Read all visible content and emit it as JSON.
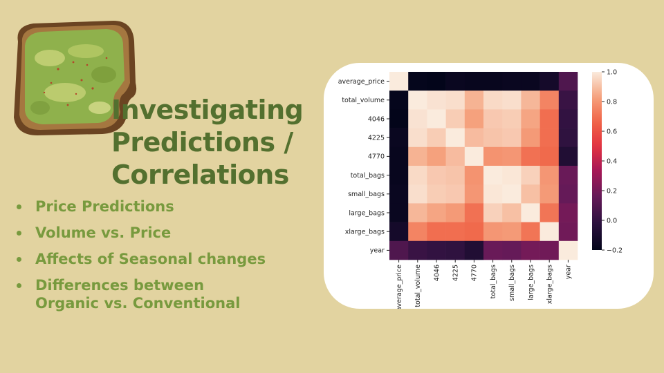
{
  "slide": {
    "title_lines": [
      "Investigating",
      "Predictions /",
      "Correlations"
    ],
    "bullets": [
      "Price Predictions",
      "Volume vs. Price",
      "Affects of Seasonal changes",
      "Differences between Organic vs. Conventional"
    ],
    "colors": {
      "background": "#e2d3a0",
      "title": "#53702f",
      "bullet": "#789a3e",
      "card": "#ffffff"
    },
    "image": "avocado-toast"
  },
  "chart_data": {
    "type": "heatmap",
    "rows": [
      "average_price",
      "total_volume",
      "4046",
      "4225",
      "4770",
      "total_bags",
      "small_bags",
      "large_bags",
      "xlarge_bags",
      "year"
    ],
    "columns": [
      "average_price",
      "total_volume",
      "4046",
      "4225",
      "4770",
      "total_bags",
      "small_bags",
      "large_bags",
      "xlarge_bags",
      "year"
    ],
    "values": [
      [
        1.0,
        -0.19,
        -0.21,
        -0.17,
        -0.18,
        -0.18,
        -0.17,
        -0.17,
        -0.12,
        0.09
      ],
      [
        -0.19,
        1.0,
        0.98,
        0.97,
        0.87,
        0.96,
        0.97,
        0.88,
        0.75,
        0.02
      ],
      [
        -0.21,
        0.98,
        1.0,
        0.93,
        0.83,
        0.92,
        0.93,
        0.84,
        0.69,
        0.0
      ],
      [
        -0.17,
        0.97,
        0.93,
        1.0,
        0.89,
        0.91,
        0.92,
        0.81,
        0.69,
        -0.01
      ],
      [
        -0.18,
        0.87,
        0.83,
        0.89,
        1.0,
        0.79,
        0.8,
        0.7,
        0.68,
        -0.07
      ],
      [
        -0.18,
        0.96,
        0.92,
        0.91,
        0.79,
        1.0,
        0.99,
        0.94,
        0.8,
        0.17
      ],
      [
        -0.17,
        0.97,
        0.93,
        0.92,
        0.8,
        0.99,
        1.0,
        0.9,
        0.81,
        0.16
      ],
      [
        -0.17,
        0.88,
        0.84,
        0.81,
        0.7,
        0.94,
        0.9,
        1.0,
        0.71,
        0.2
      ],
      [
        -0.12,
        0.75,
        0.69,
        0.69,
        0.68,
        0.8,
        0.81,
        0.71,
        1.0,
        0.19
      ],
      [
        0.09,
        0.02,
        0.0,
        -0.01,
        -0.07,
        0.17,
        0.16,
        0.2,
        0.19,
        1.0
      ]
    ],
    "colorbar": {
      "min": -0.2,
      "max": 1.0,
      "ticks": [
        "1.0",
        "0.8",
        "0.6",
        "0.4",
        "0.2",
        "0.0",
        "−0.2"
      ]
    },
    "colormap": "rocket"
  }
}
